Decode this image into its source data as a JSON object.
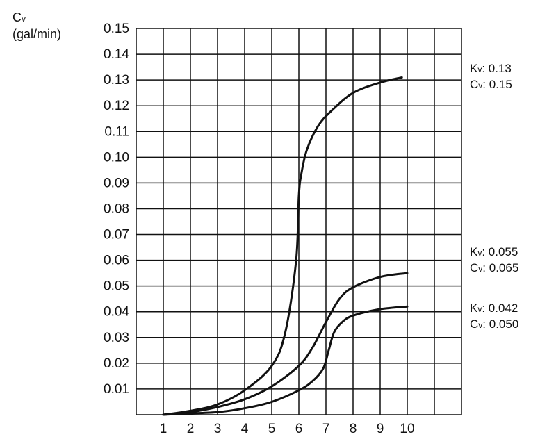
{
  "chart_data": {
    "type": "line",
    "ylabel": {
      "symbol": "C",
      "subscript": "v",
      "unit": "(gal/min)"
    },
    "xlabel": "",
    "ylim": [
      0,
      0.15
    ],
    "xlim": [
      0,
      12
    ],
    "y_ticks": [
      "0.01",
      "0.02",
      "0.03",
      "0.04",
      "0.05",
      "0.06",
      "0.07",
      "0.08",
      "0.09",
      "0.10",
      "0.11",
      "0.12",
      "0.13",
      "0.14",
      "0.15"
    ],
    "x_ticks": [
      "1",
      "2",
      "3",
      "4",
      "5",
      "6",
      "7",
      "8",
      "9",
      "10"
    ],
    "grid": true,
    "series": [
      {
        "x": [
          1,
          2,
          3,
          4,
          5,
          5.5,
          5.9,
          6,
          6.1,
          6.3,
          6.7,
          7.2,
          8,
          9,
          9.8
        ],
        "values": [
          0,
          0.0015,
          0.004,
          0.0095,
          0.019,
          0.032,
          0.06,
          0.085,
          0.094,
          0.103,
          0.112,
          0.118,
          0.125,
          0.129,
          0.131
        ],
        "kv_label": "0.13",
        "cv_label": "0.15"
      },
      {
        "x": [
          1,
          2,
          3,
          4,
          5,
          6,
          6.5,
          7,
          7.5,
          8,
          9,
          10
        ],
        "values": [
          0,
          0.001,
          0.003,
          0.006,
          0.011,
          0.019,
          0.026,
          0.036,
          0.045,
          0.0495,
          0.0535,
          0.055
        ],
        "kv_label": "0.055",
        "cv_label": "0.065"
      },
      {
        "x": [
          1,
          2,
          3,
          4,
          5,
          6,
          6.5,
          6.9,
          7.1,
          7.3,
          7.6,
          8,
          9,
          10
        ],
        "values": [
          0,
          0.0005,
          0.001,
          0.0025,
          0.005,
          0.0095,
          0.013,
          0.018,
          0.025,
          0.032,
          0.036,
          0.0385,
          0.041,
          0.042
        ],
        "kv_label": "0.042",
        "cv_label": "0.050"
      }
    ],
    "annotation_prefix": {
      "kv": "K",
      "cv": "C",
      "sub": "v"
    }
  },
  "colors": {
    "line": "#111111",
    "grid": "#111111",
    "background": "#ffffff"
  }
}
